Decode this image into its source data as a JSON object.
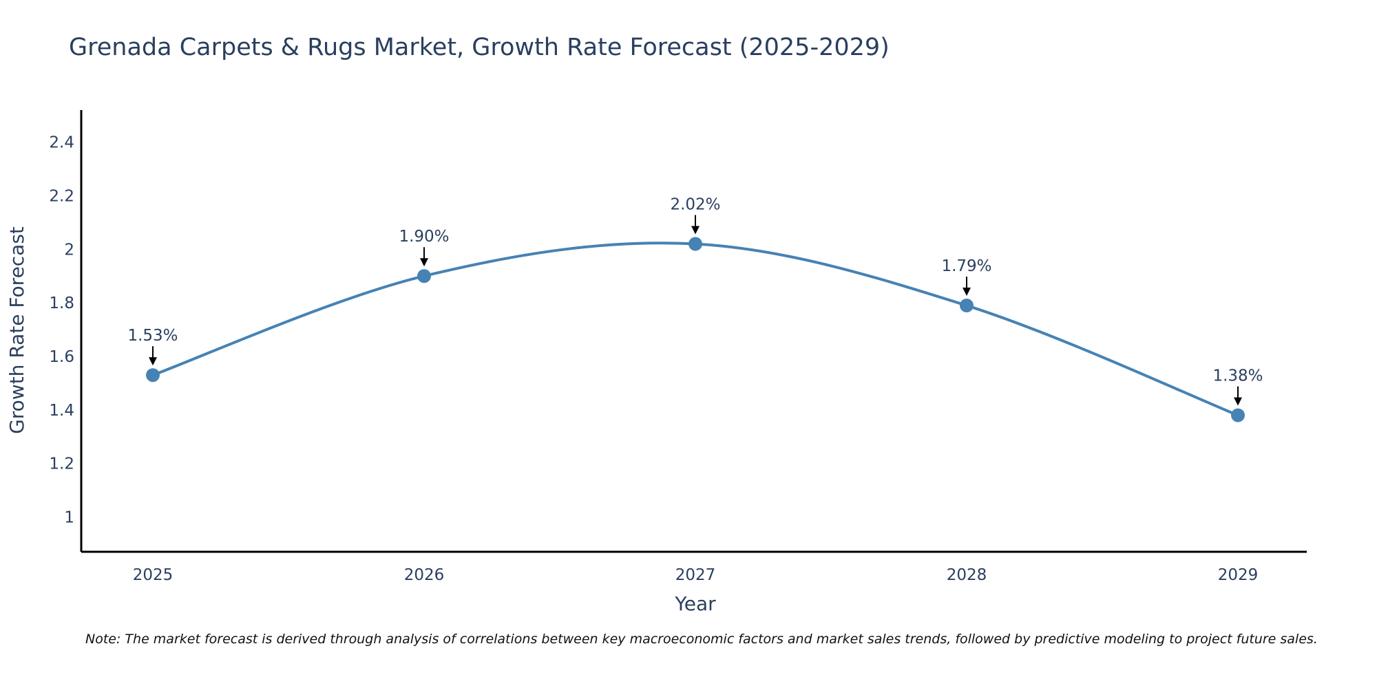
{
  "chart_data": {
    "type": "line",
    "title": "Grenada Carpets & Rugs Market, Growth Rate Forecast (2025-2029)",
    "xlabel": "Year",
    "ylabel": "Growth Rate Forecast",
    "categories": [
      "2025",
      "2026",
      "2027",
      "2028",
      "2029"
    ],
    "series": [
      {
        "values": [
          1.53,
          1.9,
          2.02,
          1.79,
          1.38
        ],
        "labels": [
          "1.53%",
          "1.90%",
          "2.02%",
          "1.79%",
          "1.38%"
        ]
      }
    ],
    "ylim": [
      0.87,
      2.52
    ],
    "yticks": [
      1,
      1.2,
      1.4,
      1.6,
      1.8,
      2,
      2.2,
      2.4
    ],
    "ytick_labels": [
      "1",
      "1.2",
      "1.4",
      "1.6",
      "1.8",
      "2",
      "2.2",
      "2.4"
    ],
    "grid": false,
    "line_shape": "spline",
    "colors": {
      "line": "#4682b4",
      "marker": "#4682b4",
      "axis": "#000000",
      "arrow": "#000000",
      "text": "#2a3f5f"
    }
  },
  "note": "Note: The market forecast is derived through analysis of correlations between key macroeconomic factors and market sales trends, followed by predictive modeling to project future sales."
}
